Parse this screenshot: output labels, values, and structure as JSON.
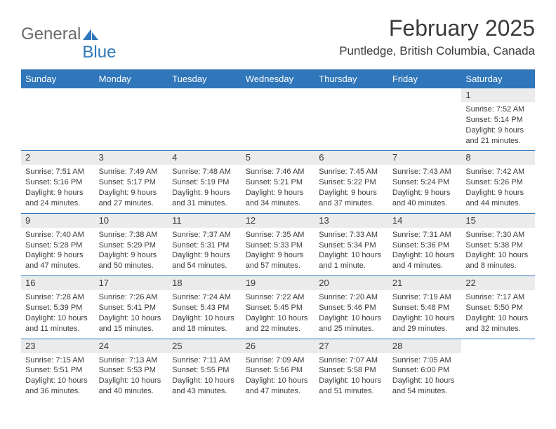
{
  "brand": {
    "part1": "General",
    "part2": "Blue"
  },
  "title": "February 2025",
  "subtitle": "Puntledge, British Columbia, Canada",
  "colors": {
    "accent": "#2f76ba",
    "daynum_bg": "#ebebeb",
    "text": "#3a3a3a",
    "logo_gray": "#6a6a6a"
  },
  "day_headers": [
    "Sunday",
    "Monday",
    "Tuesday",
    "Wednesday",
    "Thursday",
    "Friday",
    "Saturday"
  ],
  "weeks": [
    [
      {},
      {},
      {},
      {},
      {},
      {},
      {
        "n": "1",
        "sunrise": "7:52 AM",
        "sunset": "5:14 PM",
        "day": "9 hours and 21 minutes."
      }
    ],
    [
      {
        "n": "2",
        "sunrise": "7:51 AM",
        "sunset": "5:16 PM",
        "day": "9 hours and 24 minutes."
      },
      {
        "n": "3",
        "sunrise": "7:49 AM",
        "sunset": "5:17 PM",
        "day": "9 hours and 27 minutes."
      },
      {
        "n": "4",
        "sunrise": "7:48 AM",
        "sunset": "5:19 PM",
        "day": "9 hours and 31 minutes."
      },
      {
        "n": "5",
        "sunrise": "7:46 AM",
        "sunset": "5:21 PM",
        "day": "9 hours and 34 minutes."
      },
      {
        "n": "6",
        "sunrise": "7:45 AM",
        "sunset": "5:22 PM",
        "day": "9 hours and 37 minutes."
      },
      {
        "n": "7",
        "sunrise": "7:43 AM",
        "sunset": "5:24 PM",
        "day": "9 hours and 40 minutes."
      },
      {
        "n": "8",
        "sunrise": "7:42 AM",
        "sunset": "5:26 PM",
        "day": "9 hours and 44 minutes."
      }
    ],
    [
      {
        "n": "9",
        "sunrise": "7:40 AM",
        "sunset": "5:28 PM",
        "day": "9 hours and 47 minutes."
      },
      {
        "n": "10",
        "sunrise": "7:38 AM",
        "sunset": "5:29 PM",
        "day": "9 hours and 50 minutes."
      },
      {
        "n": "11",
        "sunrise": "7:37 AM",
        "sunset": "5:31 PM",
        "day": "9 hours and 54 minutes."
      },
      {
        "n": "12",
        "sunrise": "7:35 AM",
        "sunset": "5:33 PM",
        "day": "9 hours and 57 minutes."
      },
      {
        "n": "13",
        "sunrise": "7:33 AM",
        "sunset": "5:34 PM",
        "day": "10 hours and 1 minute."
      },
      {
        "n": "14",
        "sunrise": "7:31 AM",
        "sunset": "5:36 PM",
        "day": "10 hours and 4 minutes."
      },
      {
        "n": "15",
        "sunrise": "7:30 AM",
        "sunset": "5:38 PM",
        "day": "10 hours and 8 minutes."
      }
    ],
    [
      {
        "n": "16",
        "sunrise": "7:28 AM",
        "sunset": "5:39 PM",
        "day": "10 hours and 11 minutes."
      },
      {
        "n": "17",
        "sunrise": "7:26 AM",
        "sunset": "5:41 PM",
        "day": "10 hours and 15 minutes."
      },
      {
        "n": "18",
        "sunrise": "7:24 AM",
        "sunset": "5:43 PM",
        "day": "10 hours and 18 minutes."
      },
      {
        "n": "19",
        "sunrise": "7:22 AM",
        "sunset": "5:45 PM",
        "day": "10 hours and 22 minutes."
      },
      {
        "n": "20",
        "sunrise": "7:20 AM",
        "sunset": "5:46 PM",
        "day": "10 hours and 25 minutes."
      },
      {
        "n": "21",
        "sunrise": "7:19 AM",
        "sunset": "5:48 PM",
        "day": "10 hours and 29 minutes."
      },
      {
        "n": "22",
        "sunrise": "7:17 AM",
        "sunset": "5:50 PM",
        "day": "10 hours and 32 minutes."
      }
    ],
    [
      {
        "n": "23",
        "sunrise": "7:15 AM",
        "sunset": "5:51 PM",
        "day": "10 hours and 36 minutes."
      },
      {
        "n": "24",
        "sunrise": "7:13 AM",
        "sunset": "5:53 PM",
        "day": "10 hours and 40 minutes."
      },
      {
        "n": "25",
        "sunrise": "7:11 AM",
        "sunset": "5:55 PM",
        "day": "10 hours and 43 minutes."
      },
      {
        "n": "26",
        "sunrise": "7:09 AM",
        "sunset": "5:56 PM",
        "day": "10 hours and 47 minutes."
      },
      {
        "n": "27",
        "sunrise": "7:07 AM",
        "sunset": "5:58 PM",
        "day": "10 hours and 51 minutes."
      },
      {
        "n": "28",
        "sunrise": "7:05 AM",
        "sunset": "6:00 PM",
        "day": "10 hours and 54 minutes."
      },
      {}
    ]
  ],
  "labels": {
    "sunrise": "Sunrise: ",
    "sunset": "Sunset: ",
    "daylight": "Daylight: "
  }
}
